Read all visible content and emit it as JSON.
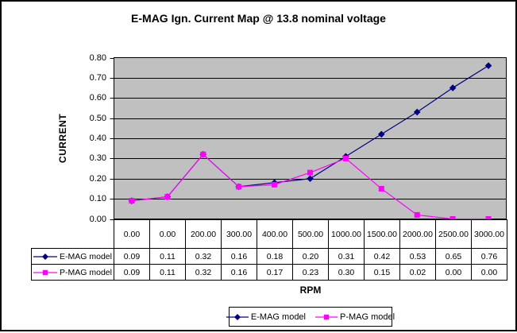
{
  "chart_data": {
    "type": "line",
    "title": "E-MAG Ign. Current Map @ 13.8 nominal voltage",
    "xlabel": "RPM",
    "ylabel": "CURRENT",
    "categories": [
      "0.00",
      "0.00",
      "200.00",
      "300.00",
      "400.00",
      "500.00",
      "1000.00",
      "1500.00",
      "2000.00",
      "2500.00",
      "3000.00"
    ],
    "series": [
      {
        "name": "E-MAG model",
        "color": "#000080",
        "marker": "diamond",
        "values": [
          0.09,
          0.11,
          0.32,
          0.16,
          0.18,
          0.2,
          0.31,
          0.42,
          0.53,
          0.65,
          0.76
        ]
      },
      {
        "name": "P-MAG model",
        "color": "#FF00FF",
        "marker": "square",
        "values": [
          0.09,
          0.11,
          0.32,
          0.16,
          0.17,
          0.23,
          0.3,
          0.15,
          0.02,
          0.0,
          0.0
        ]
      }
    ],
    "ylim": [
      0,
      0.8
    ],
    "yticks": [
      "0.80",
      "0.70",
      "0.60",
      "0.50",
      "0.40",
      "0.30",
      "0.20",
      "0.10",
      "0.00"
    ],
    "value_decimals": 2,
    "grid": "horizontal",
    "grid_color": "#000000",
    "plot_bg": "#C0C0C0",
    "chart_bg": "#FFFFFF",
    "legend_position": "bottom",
    "data_table_shown": true
  }
}
